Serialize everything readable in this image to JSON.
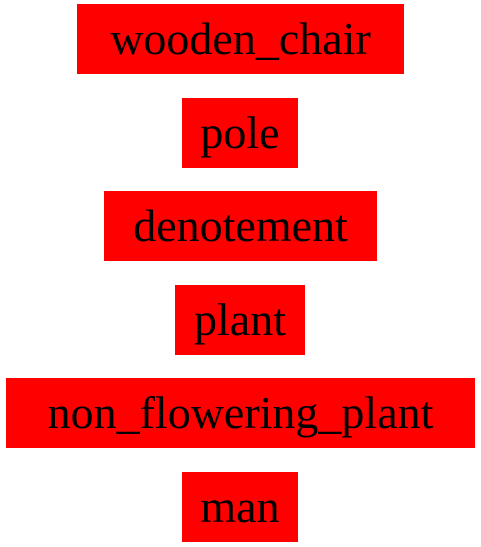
{
  "style": {
    "box_color": "#ff0000",
    "text_color": "#000000"
  },
  "nodes": [
    {
      "label": "wooden_chair"
    },
    {
      "label": "pole"
    },
    {
      "label": "denotement"
    },
    {
      "label": "plant"
    },
    {
      "label": "non_flowering_plant"
    },
    {
      "label": "man"
    }
  ]
}
